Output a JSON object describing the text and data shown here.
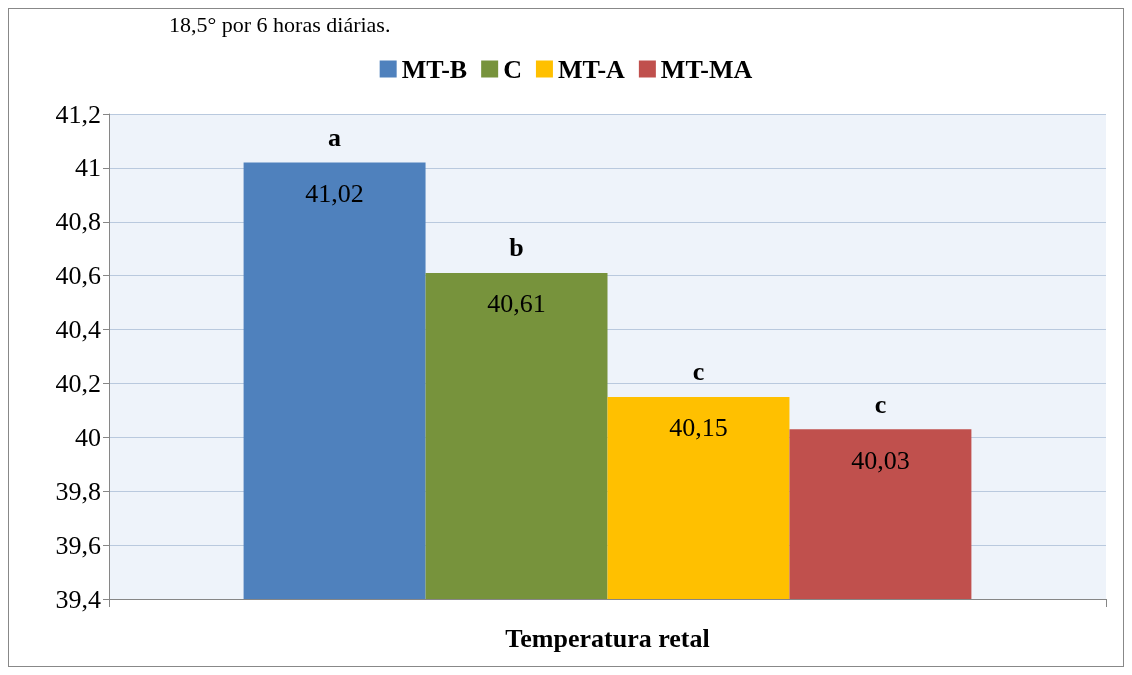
{
  "chart_data": {
    "type": "bar",
    "categories": [
      "Temperatura retal"
    ],
    "series": [
      {
        "name": "MT-B",
        "color": "#4f81bd",
        "values": [
          41.02
        ],
        "value_labels": [
          "41,02"
        ]
      },
      {
        "name": "C",
        "color": "#77933c",
        "values": [
          40.61
        ],
        "value_labels": [
          "40,61"
        ]
      },
      {
        "name": "MT-A",
        "color": "#ffc000",
        "values": [
          40.15
        ],
        "value_labels": [
          "40,15"
        ]
      },
      {
        "name": "MT-MA",
        "color": "#c0504d",
        "values": [
          40.03
        ],
        "value_labels": [
          "40,03"
        ]
      }
    ],
    "ylim": [
      39.4,
      41.2
    ],
    "yticks": [
      {
        "value": 39.4,
        "label": "39,4"
      },
      {
        "value": 39.6,
        "label": "39,6"
      },
      {
        "value": 39.8,
        "label": "39,8"
      },
      {
        "value": 40,
        "label": "40"
      },
      {
        "value": 40.2,
        "label": "40,2"
      },
      {
        "value": 40.4,
        "label": "40,4"
      },
      {
        "value": 40.6,
        "label": "40,6"
      },
      {
        "value": 40.8,
        "label": "40,8"
      },
      {
        "value": 41,
        "label": "41"
      },
      {
        "value": 41.2,
        "label": "41,2"
      }
    ],
    "grid": "y",
    "legend": "top",
    "annotations": [
      "18,5° por 6 horas diárias.",
      "a",
      "b",
      "c",
      "c"
    ]
  }
}
